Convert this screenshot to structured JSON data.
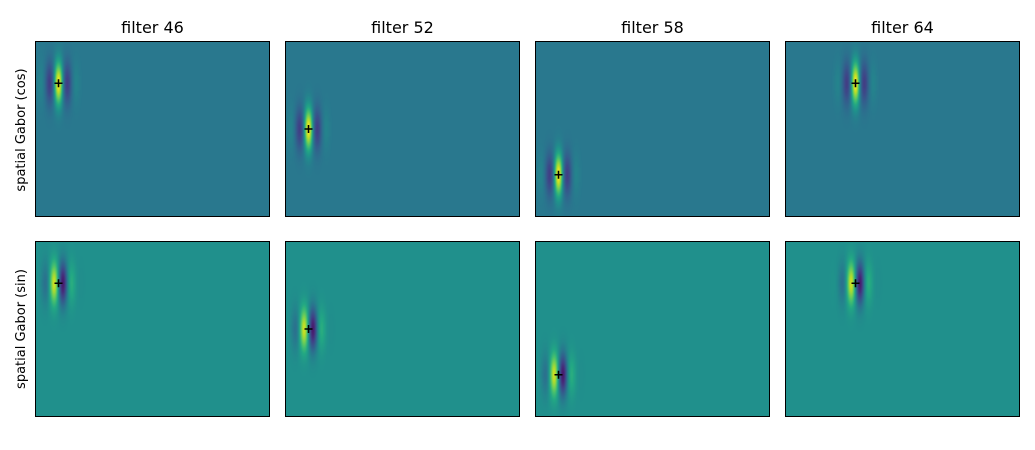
{
  "chart_data": {
    "type": "heatmap",
    "colormap": "viridis",
    "grid": false,
    "axis_ticks": false,
    "columns": [
      "filter 46",
      "filter 52",
      "filter 58",
      "filter 64"
    ],
    "rows": [
      "spatial Gabor (cos)",
      "spatial Gabor (sin)"
    ],
    "panel_extent": {
      "x": [
        0,
        1
      ],
      "y": [
        0,
        1
      ]
    },
    "filters": [
      {
        "label": "filter 46",
        "center": [
          0.1,
          0.24
        ]
      },
      {
        "label": "filter 52",
        "center": [
          0.1,
          0.5
        ]
      },
      {
        "label": "filter 58",
        "center": [
          0.1,
          0.76
        ]
      },
      {
        "label": "filter 64",
        "center": [
          0.3,
          0.24
        ]
      }
    ],
    "center_marker": "+",
    "gabor": {
      "sigma_x": 0.036,
      "sigma_y": 0.085,
      "wavelength": 0.085,
      "orientation": "vertical"
    },
    "background_colors": {
      "spatial Gabor (cos)": "#277f8e",
      "spatial Gabor (sin)": "#21918c"
    },
    "colors": {
      "viridis_low": "#440154",
      "viridis_mid": "#21918c",
      "viridis_high": "#fde725",
      "marker": "#000000",
      "axes_edge": "#000000"
    }
  }
}
